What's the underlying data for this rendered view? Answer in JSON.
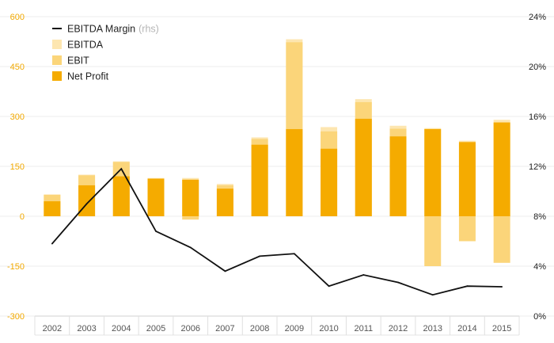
{
  "chart_data": {
    "type": "bar",
    "categories": [
      "2002",
      "2003",
      "2004",
      "2005",
      "2006",
      "2007",
      "2008",
      "2009",
      "2010",
      "2011",
      "2012",
      "2013",
      "2014",
      "2015"
    ],
    "series": [
      {
        "name": "EBITDA",
        "kind": "bar",
        "axis": "left",
        "color": "#fde6b0",
        "values": [
          65,
          125,
          165,
          115,
          115,
          97,
          237,
          532,
          268,
          352,
          272,
          265,
          227,
          290
        ]
      },
      {
        "name": "EBIT",
        "kind": "bar",
        "axis": "left",
        "color": "#fbd57a",
        "values": [
          65,
          123,
          163,
          113,
          -10,
          93,
          232,
          523,
          255,
          343,
          263,
          -150,
          -75,
          -140
        ]
      },
      {
        "name": "Net Profit",
        "kind": "bar",
        "axis": "left",
        "color": "#f5ab00",
        "values": [
          45,
          93,
          120,
          113,
          110,
          83,
          215,
          262,
          203,
          293,
          240,
          262,
          223,
          282
        ]
      },
      {
        "name": "EBITDA Margin",
        "kind": "line",
        "axis": "right",
        "color": "#111111",
        "values": [
          5.8,
          9.0,
          11.8,
          6.8,
          5.5,
          3.6,
          4.8,
          5.0,
          2.4,
          3.3,
          2.7,
          1.7,
          2.4,
          2.35
        ]
      }
    ],
    "legend": [
      {
        "label": "EBITDA Margin",
        "note": "(rhs)",
        "swatch": "line",
        "color": "#111111"
      },
      {
        "label": "EBITDA",
        "note": "",
        "swatch": "box",
        "color": "#fde6b0"
      },
      {
        "label": "EBIT",
        "note": "",
        "swatch": "box",
        "color": "#fbd57a"
      },
      {
        "label": "Net Profit",
        "note": "",
        "swatch": "box",
        "color": "#f5ab00"
      }
    ],
    "left_axis": {
      "ticks": [
        "600",
        "450",
        "300",
        "150",
        "0",
        "-150",
        "-300"
      ],
      "values": [
        600,
        450,
        300,
        150,
        0,
        -150,
        -300
      ],
      "ylim": [
        -300,
        600
      ],
      "color": "#f2a900"
    },
    "right_axis": {
      "ticks": [
        "24%",
        "20%",
        "16%",
        "12%",
        "8%",
        "4%",
        "0%"
      ],
      "values": [
        24,
        20,
        16,
        12,
        8,
        4,
        0
      ],
      "ylim": [
        0,
        24
      ]
    },
    "title": "",
    "xlabel": "",
    "ylabel": "",
    "grid": true,
    "legend_position": "top-left"
  }
}
